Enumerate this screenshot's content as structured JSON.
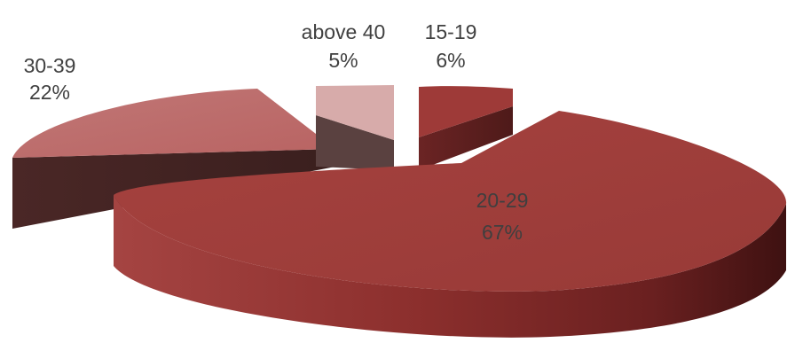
{
  "chart_data": {
    "type": "pie",
    "title": "",
    "subtitle": "",
    "legend": false,
    "slices": [
      {
        "label": "15-19",
        "value": 6,
        "percent_label": "6%",
        "color": "#9E3A38"
      },
      {
        "label": "20-29",
        "value": 67,
        "percent_label": "67%",
        "color": "#A33F3C"
      },
      {
        "label": "30-39",
        "value": 22,
        "percent_label": "22%",
        "color": "#BE6E6D"
      },
      {
        "label": "above 40",
        "value": 5,
        "percent_label": "5%",
        "color": "#D7ABAA"
      }
    ]
  }
}
